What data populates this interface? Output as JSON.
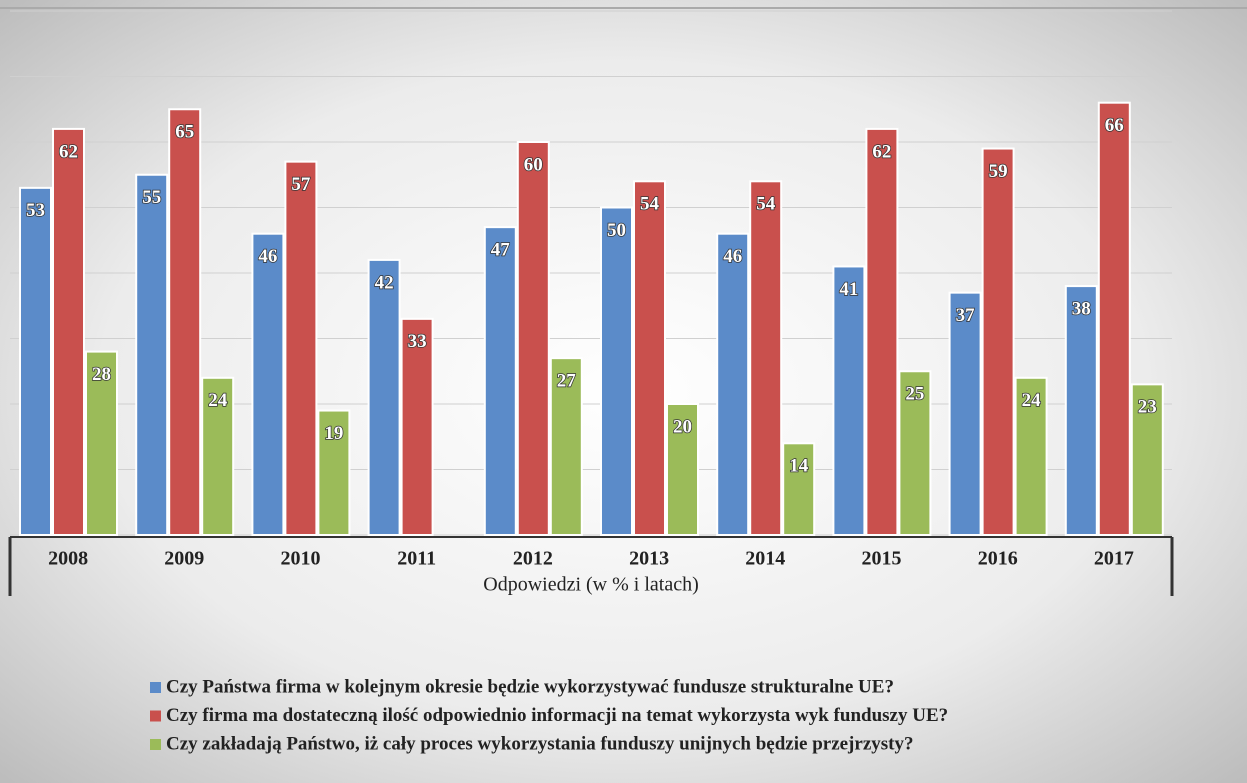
{
  "chart_data": {
    "type": "bar",
    "x_label": "Odpowiedzi (w % i latach)",
    "categories": [
      "2008",
      "2009",
      "2010",
      "2011",
      "2012",
      "2013",
      "2014",
      "2015",
      "2016",
      "2017"
    ],
    "series": [
      {
        "name": "Czy Państwa firma w kolejnym okresie będzie wykorzystywać fundusze strukturalne UE?",
        "color": "#5b8bc9",
        "values": [
          53,
          55,
          46,
          42,
          47,
          50,
          46,
          41,
          37,
          38
        ]
      },
      {
        "name": "Czy firma ma dostateczną ilość odpowiednio informacji na temat wykorzysta wyk funduszy UE?",
        "color": "#c9504d",
        "values": [
          62,
          65,
          57,
          33,
          60,
          54,
          54,
          62,
          59,
          66
        ]
      },
      {
        "name": "Czy zakładają Państwo, iż cały proces wykorzystania funduszy unijnych będzie przejrzysty?",
        "color": "#9bbb59",
        "values": [
          28,
          24,
          19,
          null,
          27,
          20,
          14,
          25,
          24,
          23
        ]
      }
    ],
    "ylim": [
      0,
      80
    ],
    "yticks": [
      0,
      10,
      20,
      30,
      40,
      50,
      60,
      70,
      80
    ],
    "grid": true
  }
}
